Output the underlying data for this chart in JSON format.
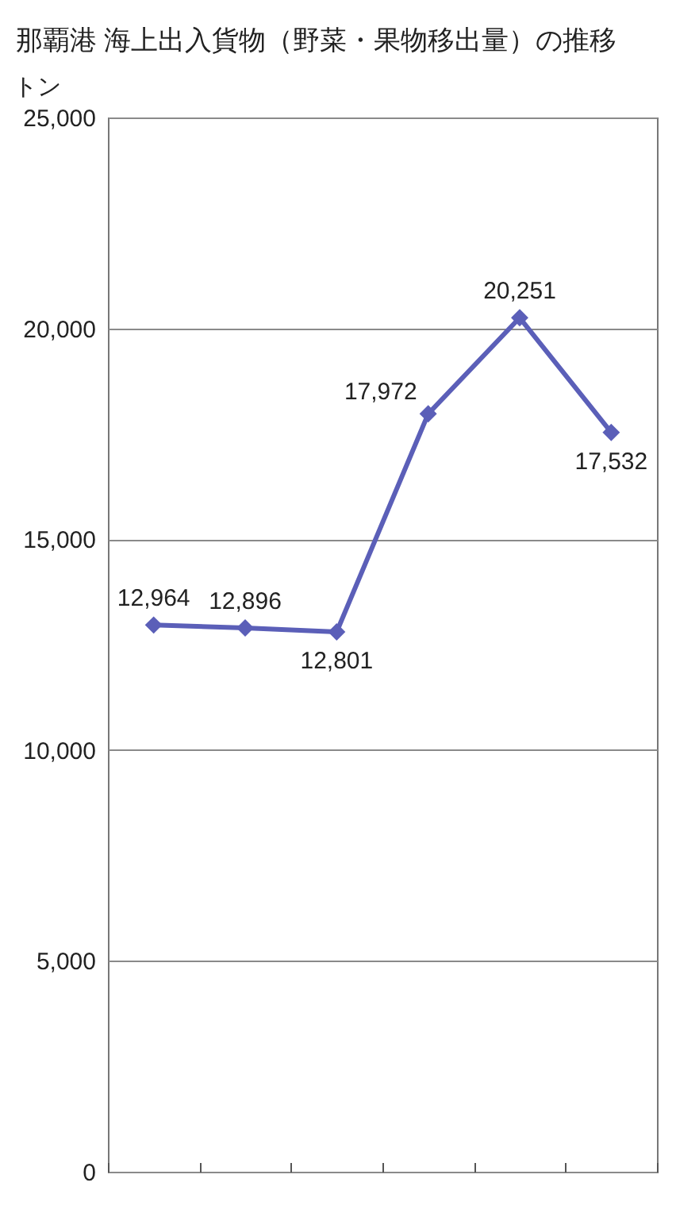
{
  "chart_data": {
    "type": "line",
    "title": "那覇港 海上出入貨物（野菜・果物移出量）の推移",
    "ylabel": "トン",
    "categories": [
      null,
      null,
      null,
      null,
      null,
      null
    ],
    "series": [
      {
        "color": "#5b5fb8",
        "values": [
          12964,
          12896,
          12801,
          17972,
          20251,
          17532
        ],
        "value_labels": [
          "12,964",
          "12,896",
          "12,801",
          "17,972",
          "20,251",
          "17,532"
        ]
      }
    ],
    "ylim": [
      0,
      25000
    ],
    "yticks": [
      0,
      {
        "value": 5000,
        "label": "5,000"
      },
      {
        "value": 10000,
        "label": "10,000"
      },
      {
        "value": 15000,
        "label": "15,000"
      },
      {
        "value": 20000,
        "label": "20,000"
      },
      {
        "value": 25000,
        "label": "25,000"
      }
    ],
    "grid": "y",
    "marker": "diamond"
  }
}
